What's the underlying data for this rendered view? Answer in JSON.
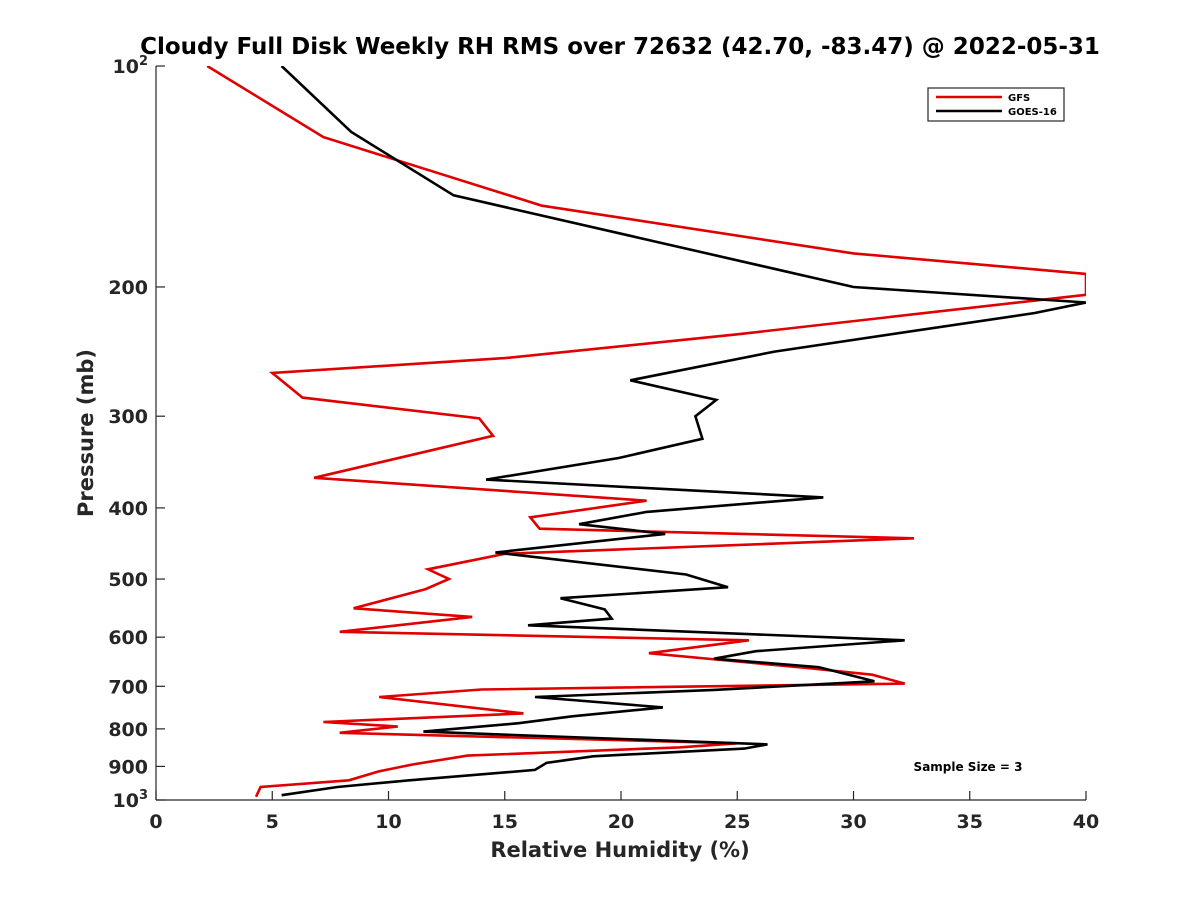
{
  "chart_data": {
    "type": "line",
    "title": "Cloudy Full Disk Weekly RH RMS over 72632 (42.70, -83.47) @ 2022-05-31",
    "xlabel": "Relative Humidity (%)",
    "ylabel": "Pressure (mb)",
    "xlim": [
      0,
      40
    ],
    "ylim": [
      100,
      1000
    ],
    "y_scale": "log",
    "y_reversed": true,
    "x_ticks": [
      "0",
      "5",
      "10",
      "15",
      "20",
      "25",
      "30",
      "35",
      "40"
    ],
    "y_ticks": [
      {
        "value": 100,
        "base": "10",
        "exp": "2"
      },
      {
        "value": 200,
        "label": "200"
      },
      {
        "value": 300,
        "label": "300"
      },
      {
        "value": 400,
        "label": "400"
      },
      {
        "value": 500,
        "label": "500"
      },
      {
        "value": 600,
        "label": "600"
      },
      {
        "value": 700,
        "label": "700"
      },
      {
        "value": 800,
        "label": "800"
      },
      {
        "value": 900,
        "label": "900"
      },
      {
        "value": 1000,
        "base": "10",
        "exp": "3"
      }
    ],
    "grid": false,
    "legend_position": "top-right",
    "annotation": "Sample Size = 3",
    "series": [
      {
        "name": "GFS",
        "color": "#e00000",
        "points": [
          [
            2.2,
            100
          ],
          [
            7.2,
            125
          ],
          [
            16.6,
            155
          ],
          [
            30.0,
            180
          ],
          [
            40.0,
            192
          ],
          [
            40.0,
            205
          ],
          [
            25.0,
            232
          ],
          [
            15.0,
            250
          ],
          [
            5.0,
            262
          ],
          [
            6.3,
            283
          ],
          [
            13.9,
            302
          ],
          [
            14.5,
            319
          ],
          [
            6.8,
            364
          ],
          [
            21.1,
            391
          ],
          [
            16.1,
            412
          ],
          [
            16.5,
            427
          ],
          [
            32.6,
            440
          ],
          [
            15.0,
            462
          ],
          [
            11.7,
            485
          ],
          [
            12.6,
            500
          ],
          [
            11.6,
            516
          ],
          [
            8.5,
            548
          ],
          [
            13.6,
            563
          ],
          [
            7.9,
            590
          ],
          [
            25.5,
            606
          ],
          [
            21.2,
            631
          ],
          [
            28.0,
            661
          ],
          [
            30.8,
            675
          ],
          [
            32.2,
            694
          ],
          [
            14.0,
            707
          ],
          [
            9.6,
            724
          ],
          [
            15.8,
            762
          ],
          [
            7.2,
            783
          ],
          [
            10.4,
            794
          ],
          [
            7.9,
            810
          ],
          [
            25.0,
            837
          ],
          [
            22.5,
            848
          ],
          [
            13.4,
            870
          ],
          [
            11.0,
            895
          ],
          [
            9.6,
            914
          ],
          [
            8.3,
            940
          ],
          [
            4.5,
            960
          ],
          [
            4.3,
            990
          ]
        ]
      },
      {
        "name": "GOES-16",
        "color": "#000000",
        "points": [
          [
            5.4,
            100
          ],
          [
            8.4,
            123
          ],
          [
            12.8,
            150
          ],
          [
            30.0,
            200
          ],
          [
            40.0,
            210
          ],
          [
            37.8,
            217
          ],
          [
            26.6,
            245
          ],
          [
            20.4,
            268
          ],
          [
            24.1,
            285
          ],
          [
            23.2,
            300
          ],
          [
            23.5,
            322
          ],
          [
            19.9,
            342
          ],
          [
            14.2,
            366
          ],
          [
            28.7,
            387
          ],
          [
            21.1,
            405
          ],
          [
            18.2,
            421
          ],
          [
            21.9,
            434
          ],
          [
            14.6,
            460
          ],
          [
            22.8,
            493
          ],
          [
            24.6,
            513
          ],
          [
            17.4,
            531
          ],
          [
            19.3,
            550
          ],
          [
            19.6,
            566
          ],
          [
            16.0,
            578
          ],
          [
            32.2,
            606
          ],
          [
            25.8,
            627
          ],
          [
            24.0,
            642
          ],
          [
            28.5,
            659
          ],
          [
            30.9,
            689
          ],
          [
            24.0,
            708
          ],
          [
            16.3,
            724
          ],
          [
            21.8,
            748
          ],
          [
            17.9,
            769
          ],
          [
            15.6,
            786
          ],
          [
            11.5,
            807
          ],
          [
            26.3,
            840
          ],
          [
            25.3,
            851
          ],
          [
            18.8,
            872
          ],
          [
            16.8,
            890
          ],
          [
            16.3,
            910
          ],
          [
            10.9,
            940
          ],
          [
            7.8,
            960
          ],
          [
            5.4,
            985
          ]
        ]
      }
    ]
  }
}
